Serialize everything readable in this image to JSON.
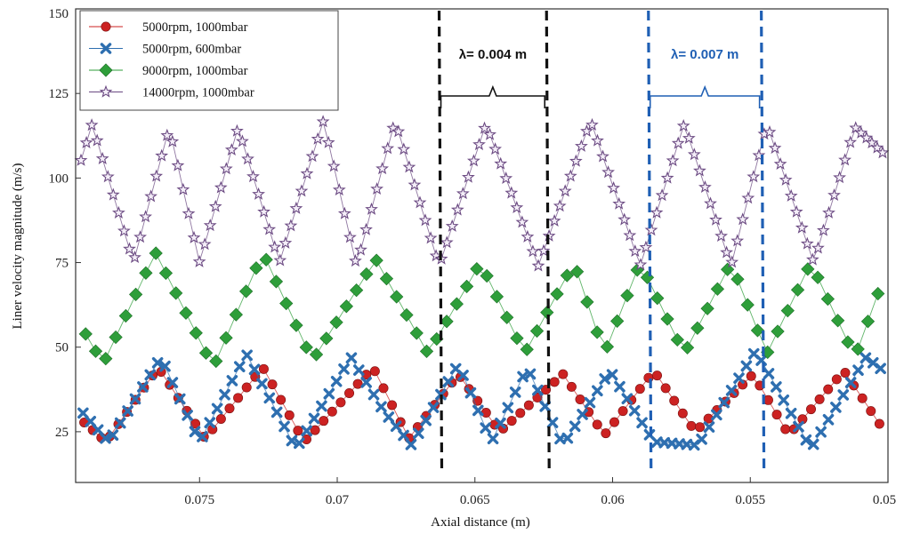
{
  "chart_data": {
    "type": "line",
    "title": "",
    "xlabel": "Axial  distance (m)",
    "ylabel": "Liner velocity magnitude (m/s)",
    "xlim": [
      0.0795,
      0.05
    ],
    "x_reversed": true,
    "ylim": [
      10,
      150
    ],
    "xticks": [
      0.075,
      0.07,
      0.065,
      0.06,
      0.055,
      0.05
    ],
    "xtick_labels": [
      "0.075",
      "0.07",
      "0.065",
      "0.06",
      "0.055",
      "0.05"
    ],
    "yticks": [
      25,
      50,
      75,
      100,
      125,
      150
    ],
    "ytick_labels": [
      "25",
      "50",
      "75",
      "100",
      "125",
      "150"
    ],
    "grid": false,
    "legend_position": "top-left",
    "series": [
      {
        "name": "5000rpm, 1000mbar",
        "color": "#cc2222",
        "marker": "circle",
        "x_start": 0.0795,
        "x_end": 0.05,
        "n_points": 96,
        "x": [
          0.0795,
          0.0784,
          0.0765,
          0.0748,
          0.0727,
          0.0712,
          0.0687,
          0.0674,
          0.0656,
          0.0641,
          0.0618,
          0.0603,
          0.0585,
          0.057,
          0.0549,
          0.0536,
          0.0516,
          0.0502,
          0.05
        ],
        "y": [
          30,
          22,
          44,
          23,
          44,
          22,
          44,
          23,
          42,
          25,
          42,
          24,
          43,
          25,
          42,
          24,
          43,
          26,
          41
        ]
      },
      {
        "name": "5000rpm, 600mbar",
        "color": "#2e6fb0",
        "marker": "x",
        "x_start": 0.0795,
        "x_end": 0.05,
        "n_points": 110,
        "x": [
          0.0795,
          0.0783,
          0.0764,
          0.075,
          0.0733,
          0.0715,
          0.0695,
          0.0683,
          0.0673,
          0.0656,
          0.0644,
          0.0631,
          0.0618,
          0.0601,
          0.0585,
          0.0569,
          0.0548,
          0.0528,
          0.0508,
          0.05
        ],
        "y": [
          33,
          22,
          47,
          22,
          48,
          20,
          47,
          31,
          21,
          45,
          22,
          44,
          21,
          43,
          22,
          21,
          49,
          20,
          47,
          42
        ]
      },
      {
        "name": "9000rpm, 1000mbar",
        "color": "#2e9e3a",
        "marker": "diamond",
        "x_start": 0.0795,
        "x_end": 0.05,
        "n_points": 82,
        "x": [
          0.0795,
          0.0785,
          0.0766,
          0.0745,
          0.0727,
          0.0709,
          0.0686,
          0.0667,
          0.0648,
          0.0632,
          0.0614,
          0.0603,
          0.059,
          0.0574,
          0.0557,
          0.0544,
          0.0528,
          0.0512,
          0.05
        ],
        "y": [
          59,
          45,
          78,
          44,
          78,
          46,
          76,
          48,
          75,
          48,
          75,
          48,
          75,
          48,
          75,
          48,
          75,
          47,
          74
        ]
      },
      {
        "name": "14000rpm, 1000mbar",
        "color": "#6b4a82",
        "marker": "star",
        "x_start": 0.0795,
        "x_end": 0.05,
        "n_points": 152,
        "x": [
          0.0795,
          0.0789,
          0.0774,
          0.0761,
          0.075,
          0.0736,
          0.0721,
          0.0705,
          0.0693,
          0.0679,
          0.0663,
          0.0646,
          0.0627,
          0.0608,
          0.059,
          0.0574,
          0.0557,
          0.0544,
          0.0527,
          0.0512,
          0.05
        ],
        "y": [
          100,
          116,
          75,
          115,
          75,
          115,
          75,
          117,
          74,
          117,
          74,
          116,
          74,
          117,
          74,
          116,
          74,
          116,
          75,
          115,
          106
        ]
      }
    ],
    "annotations": [
      {
        "text": "λ= 0.004 m",
        "color": "#111111",
        "x_from": 0.0663,
        "x_to": 0.0624
      },
      {
        "text": "λ= 0.007 m",
        "color": "#1f5fb4",
        "x_from": 0.0587,
        "x_to": 0.0546
      }
    ]
  }
}
